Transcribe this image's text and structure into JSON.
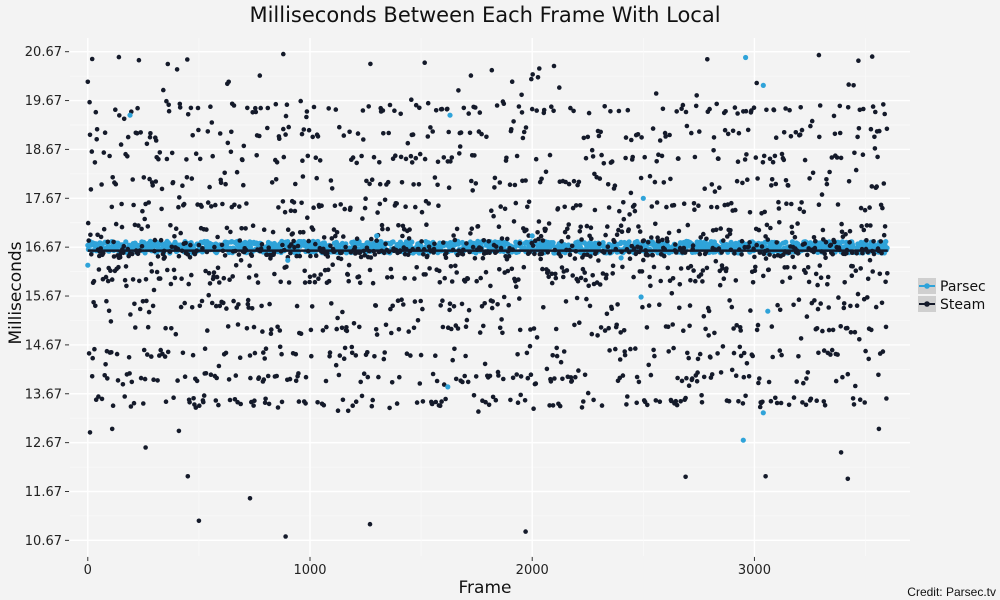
{
  "chart_data": {
    "type": "scatter",
    "title": "Milliseconds Between Each Frame With Local",
    "xlabel": "Frame",
    "ylabel": "Milliseconds",
    "xlim": [
      -80,
      3700
    ],
    "ylim": [
      10.35,
      20.95
    ],
    "x_ticks": [
      0,
      1000,
      2000,
      3000
    ],
    "x_tick_labels": [
      "0",
      "1000",
      "2000",
      "3000"
    ],
    "y_ticks": [
      10.67,
      11.67,
      12.67,
      13.67,
      14.67,
      15.67,
      16.67,
      17.67,
      18.67,
      19.67,
      20.67
    ],
    "y_tick_labels": [
      "10.67",
      "11.67",
      "12.67",
      "13.67",
      "14.67",
      "15.67",
      "16.67",
      "17.67",
      "18.67",
      "19.67",
      "20.67"
    ],
    "grid": true,
    "legend_position": "right",
    "frame_count": 3600,
    "credit": "Credit: Parsec.tv",
    "series": [
      {
        "name": "Parsec",
        "color": "#2fa3d9",
        "baseline": 16.67,
        "points": [
          [
            0,
            16.3
          ],
          [
            190,
            19.37
          ],
          [
            1620,
            13.81
          ],
          [
            1630,
            19.37
          ],
          [
            2490,
            15.65
          ],
          [
            2500,
            17.67
          ],
          [
            2950,
            12.72
          ],
          [
            2960,
            20.55
          ],
          [
            3040,
            19.98
          ],
          [
            3040,
            13.28
          ],
          [
            3060,
            15.36
          ],
          [
            2000,
            16.9
          ],
          [
            900,
            16.4
          ],
          [
            1300,
            16.9
          ],
          [
            2400,
            16.45
          ]
        ]
      },
      {
        "name": "Steam",
        "color": "#141a2a",
        "baseline": 16.6,
        "bands": [
          16.6,
          16.6,
          16.5,
          16.8,
          17.05,
          16.2,
          18.0,
          18.5,
          15.5,
          17.5,
          15.0,
          16.0,
          19.5,
          14.5,
          14.0,
          19.0,
          13.5
        ],
        "outliers": [
          [
            500,
            11.07
          ],
          [
            890,
            10.75
          ],
          [
            1270,
            11.0
          ],
          [
            1970,
            10.85
          ],
          [
            730,
            11.53
          ],
          [
            450,
            11.98
          ],
          [
            3420,
            11.93
          ],
          [
            2690,
            11.97
          ],
          [
            3050,
            11.98
          ],
          [
            260,
            12.57
          ],
          [
            3390,
            12.47
          ],
          [
            110,
            12.95
          ],
          [
            10,
            12.88
          ],
          [
            3560,
            12.95
          ],
          [
            410,
            12.91
          ],
          [
            3010,
            20.03
          ],
          [
            3290,
            20.6
          ],
          [
            3530,
            20.57
          ],
          [
            880,
            20.62
          ],
          [
            140,
            20.56
          ],
          [
            20,
            20.52
          ]
        ]
      }
    ]
  }
}
